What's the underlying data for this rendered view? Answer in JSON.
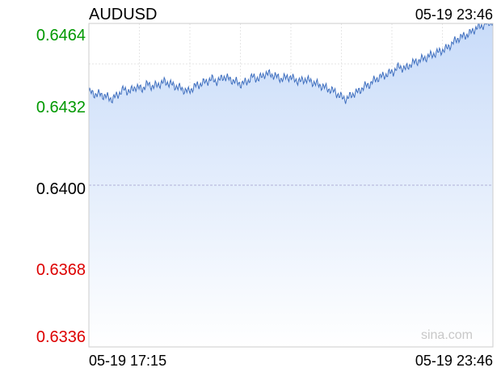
{
  "header": {
    "symbol": "AUDUSD",
    "timestamp": "05-19 23:46"
  },
  "watermark": "sina.com",
  "colors": {
    "line": "#3f6fbf",
    "fill_top": "#c9dcf9",
    "fill_bottom": "#ffffff",
    "grid": "#e6e6e6",
    "reference": "#b0b0d8",
    "up_label": "#009900",
    "down_label": "#dd0000",
    "neutral_label": "#000000",
    "frame": "#cccccc"
  },
  "chart_data": {
    "type": "area",
    "title": "AUDUSD",
    "xlabel": "",
    "ylabel": "",
    "x_tick_labels": [
      "05-19 17:15",
      "05-19 23:46"
    ],
    "x_range": [
      "05-19 17:15",
      "05-19 23:46"
    ],
    "y_tick_labels": [
      "0.6464",
      "0.6432",
      "0.6400",
      "0.6368",
      "0.6336"
    ],
    "ylim": [
      0.6336,
      0.6464
    ],
    "reference_value": 0.64,
    "grid": true,
    "series": [
      {
        "values": [
          0.6437,
          0.6436,
          0.6436,
          0.6435,
          0.6434,
          0.6436,
          0.6438,
          0.6437,
          0.6439,
          0.6438,
          0.644,
          0.6439,
          0.644,
          0.6441,
          0.644,
          0.6439,
          0.6438,
          0.6437,
          0.6439,
          0.644,
          0.6441,
          0.6442,
          0.6441,
          0.6443,
          0.6442,
          0.6441,
          0.644,
          0.6441,
          0.6443,
          0.6442,
          0.6444,
          0.6444,
          0.6443,
          0.6442,
          0.6443,
          0.6442,
          0.6441,
          0.6442,
          0.6441,
          0.644,
          0.6439,
          0.6438,
          0.6437,
          0.6435,
          0.6434,
          0.6436,
          0.6437,
          0.6439,
          0.644,
          0.6442,
          0.6443,
          0.6444,
          0.6445,
          0.6447,
          0.6446,
          0.6448,
          0.6449,
          0.645,
          0.6451,
          0.6452,
          0.6453,
          0.6454,
          0.6456,
          0.6458,
          0.6459,
          0.646,
          0.6462,
          0.6463,
          0.6464,
          0.6465
        ]
      }
    ]
  }
}
